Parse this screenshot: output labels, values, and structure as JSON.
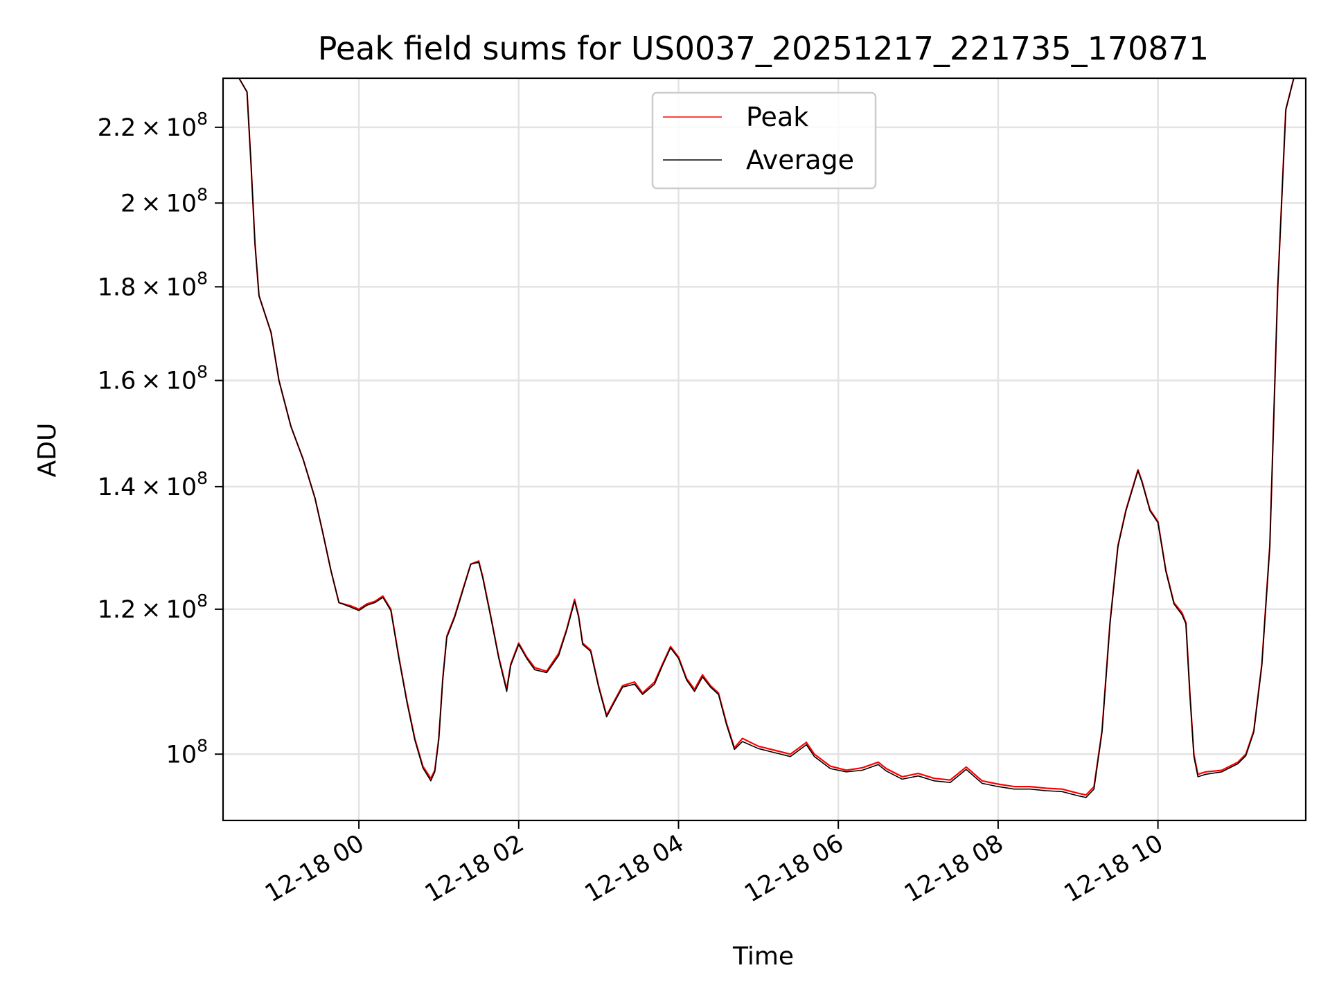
{
  "chart_data": {
    "type": "line",
    "title": "Peak field sums for US0037_20251217_221735_170871",
    "xlabel": "Time",
    "ylabel": "ADU",
    "x_unit": "hours after 12-18 00:00",
    "x_tick_labels": [
      {
        "x": 0,
        "label": "12-18 00"
      },
      {
        "x": 2,
        "label": "12-18 02"
      },
      {
        "x": 4,
        "label": "12-18 04"
      },
      {
        "x": 6,
        "label": "12-18 06"
      },
      {
        "x": 8,
        "label": "12-18 08"
      },
      {
        "x": 10,
        "label": "12-18 10"
      }
    ],
    "y_tick_labels": [
      {
        "y": 100000000,
        "mantissa": "",
        "exp": "8",
        "prefix": "10"
      },
      {
        "y": 120000000,
        "mantissa": "1.2",
        "exp": "8",
        "prefix": "10"
      },
      {
        "y": 140000000,
        "mantissa": "1.4",
        "exp": "8",
        "prefix": "10"
      },
      {
        "y": 160000000,
        "mantissa": "1.6",
        "exp": "8",
        "prefix": "10"
      },
      {
        "y": 180000000,
        "mantissa": "1.8",
        "exp": "8",
        "prefix": "10"
      },
      {
        "y": 200000000,
        "mantissa": "2",
        "exp": "8",
        "prefix": "10"
      },
      {
        "y": 220000000,
        "mantissa": "2.2",
        "exp": "8",
        "prefix": "10"
      }
    ],
    "xlim": [
      -1.7,
      11.85
    ],
    "ylim": [
      92000000,
      234000000
    ],
    "yscale": "log",
    "grid": true,
    "legend_position": "top-center",
    "series": [
      {
        "name": "Peak",
        "color": "#ff0000",
        "values": [
          [
            -1.7,
            234000000
          ],
          [
            -1.5,
            234000000
          ],
          [
            -1.4,
            230000000
          ],
          [
            -1.35,
            210000000
          ],
          [
            -1.3,
            190000000
          ],
          [
            -1.25,
            178000000
          ],
          [
            -1.1,
            170000000
          ],
          [
            -1.0,
            160000000
          ],
          [
            -0.85,
            151000000
          ],
          [
            -0.7,
            145000000
          ],
          [
            -0.55,
            138000000
          ],
          [
            -0.45,
            132000000
          ],
          [
            -0.35,
            126000000
          ],
          [
            -0.25,
            121000000
          ],
          [
            -0.1,
            120500000
          ],
          [
            0.0,
            120000000
          ],
          [
            0.1,
            120800000
          ],
          [
            0.2,
            121200000
          ],
          [
            0.3,
            122000000
          ],
          [
            0.35,
            121000000
          ],
          [
            0.4,
            120000000
          ],
          [
            0.5,
            113000000
          ],
          [
            0.6,
            107000000
          ],
          [
            0.7,
            102000000
          ],
          [
            0.8,
            98500000
          ],
          [
            0.9,
            97000000
          ],
          [
            0.95,
            98000000
          ],
          [
            1.0,
            102000000
          ],
          [
            1.05,
            110000000
          ],
          [
            1.1,
            116000000
          ],
          [
            1.2,
            119000000
          ],
          [
            1.3,
            123000000
          ],
          [
            1.4,
            127000000
          ],
          [
            1.5,
            127500000
          ],
          [
            1.55,
            125000000
          ],
          [
            1.65,
            119000000
          ],
          [
            1.75,
            113000000
          ],
          [
            1.85,
            108500000
          ],
          [
            1.9,
            112000000
          ],
          [
            2.0,
            115000000
          ],
          [
            2.1,
            113000000
          ],
          [
            2.2,
            111500000
          ],
          [
            2.35,
            111000000
          ],
          [
            2.5,
            113500000
          ],
          [
            2.6,
            117000000
          ],
          [
            2.7,
            121500000
          ],
          [
            2.75,
            119000000
          ],
          [
            2.8,
            115000000
          ],
          [
            2.9,
            114000000
          ],
          [
            3.0,
            109000000
          ],
          [
            3.1,
            105000000
          ],
          [
            3.2,
            107000000
          ],
          [
            3.3,
            109000000
          ],
          [
            3.45,
            109500000
          ],
          [
            3.55,
            108000000
          ],
          [
            3.7,
            109500000
          ],
          [
            3.8,
            112000000
          ],
          [
            3.9,
            114500000
          ],
          [
            4.0,
            113000000
          ],
          [
            4.1,
            110000000
          ],
          [
            4.2,
            108500000
          ],
          [
            4.3,
            110500000
          ],
          [
            4.4,
            109000000
          ],
          [
            4.5,
            108000000
          ],
          [
            4.6,
            104000000
          ],
          [
            4.7,
            100800000
          ],
          [
            4.8,
            102000000
          ],
          [
            5.0,
            101000000
          ],
          [
            5.2,
            100500000
          ],
          [
            5.4,
            100000000
          ],
          [
            5.6,
            101500000
          ],
          [
            5.7,
            100000000
          ],
          [
            5.9,
            98500000
          ],
          [
            6.1,
            98000000
          ],
          [
            6.3,
            98300000
          ],
          [
            6.5,
            99000000
          ],
          [
            6.6,
            98200000
          ],
          [
            6.8,
            97200000
          ],
          [
            7.0,
            97600000
          ],
          [
            7.2,
            97000000
          ],
          [
            7.4,
            96800000
          ],
          [
            7.6,
            98400000
          ],
          [
            7.8,
            96700000
          ],
          [
            8.0,
            96300000
          ],
          [
            8.2,
            96000000
          ],
          [
            8.4,
            96000000
          ],
          [
            8.6,
            95800000
          ],
          [
            8.8,
            95700000
          ],
          [
            9.0,
            95200000
          ],
          [
            9.1,
            95000000
          ],
          [
            9.2,
            96000000
          ],
          [
            9.3,
            103000000
          ],
          [
            9.4,
            118000000
          ],
          [
            9.5,
            130000000
          ],
          [
            9.6,
            136000000
          ],
          [
            9.75,
            143000000
          ],
          [
            9.8,
            141000000
          ],
          [
            9.9,
            136000000
          ],
          [
            10.0,
            134000000
          ],
          [
            10.1,
            126000000
          ],
          [
            10.2,
            121000000
          ],
          [
            10.3,
            119500000
          ],
          [
            10.35,
            118000000
          ],
          [
            10.4,
            108000000
          ],
          [
            10.45,
            100000000
          ],
          [
            10.5,
            97500000
          ],
          [
            10.6,
            97800000
          ],
          [
            10.8,
            98000000
          ],
          [
            11.0,
            99000000
          ],
          [
            11.1,
            100000000
          ],
          [
            11.2,
            103000000
          ],
          [
            11.3,
            112000000
          ],
          [
            11.4,
            130000000
          ],
          [
            11.5,
            180000000
          ],
          [
            11.6,
            225000000
          ],
          [
            11.7,
            234000000
          ],
          [
            11.85,
            234000000
          ]
        ]
      },
      {
        "name": "Average",
        "color": "#000000",
        "values": [
          [
            -1.7,
            234000000
          ],
          [
            -1.5,
            234000000
          ],
          [
            -1.4,
            230000000
          ],
          [
            -1.35,
            210000000
          ],
          [
            -1.3,
            190000000
          ],
          [
            -1.25,
            178000000
          ],
          [
            -1.1,
            170000000
          ],
          [
            -1.0,
            160000000
          ],
          [
            -0.85,
            151000000
          ],
          [
            -0.7,
            145000000
          ],
          [
            -0.55,
            138000000
          ],
          [
            -0.45,
            132000000
          ],
          [
            -0.35,
            126000000
          ],
          [
            -0.25,
            121000000
          ],
          [
            -0.1,
            120300000
          ],
          [
            0.0,
            119800000
          ],
          [
            0.1,
            120600000
          ],
          [
            0.2,
            121000000
          ],
          [
            0.3,
            121800000
          ],
          [
            0.35,
            120800000
          ],
          [
            0.4,
            119800000
          ],
          [
            0.5,
            112800000
          ],
          [
            0.6,
            106800000
          ],
          [
            0.7,
            101800000
          ],
          [
            0.8,
            98300000
          ],
          [
            0.9,
            96700000
          ],
          [
            0.95,
            97800000
          ],
          [
            1.0,
            101800000
          ],
          [
            1.05,
            109800000
          ],
          [
            1.1,
            115800000
          ],
          [
            1.2,
            118800000
          ],
          [
            1.3,
            122800000
          ],
          [
            1.4,
            127000000
          ],
          [
            1.5,
            127300000
          ],
          [
            1.55,
            124800000
          ],
          [
            1.65,
            118800000
          ],
          [
            1.75,
            112800000
          ],
          [
            1.85,
            108200000
          ],
          [
            1.9,
            111800000
          ],
          [
            2.0,
            114800000
          ],
          [
            2.1,
            112800000
          ],
          [
            2.2,
            111200000
          ],
          [
            2.35,
            110800000
          ],
          [
            2.5,
            113200000
          ],
          [
            2.6,
            116800000
          ],
          [
            2.7,
            121200000
          ],
          [
            2.75,
            118800000
          ],
          [
            2.8,
            114800000
          ],
          [
            2.9,
            113800000
          ],
          [
            3.0,
            108800000
          ],
          [
            3.1,
            104800000
          ],
          [
            3.2,
            106800000
          ],
          [
            3.3,
            108800000
          ],
          [
            3.45,
            109200000
          ],
          [
            3.55,
            107800000
          ],
          [
            3.7,
            109200000
          ],
          [
            3.8,
            111800000
          ],
          [
            3.9,
            114300000
          ],
          [
            4.0,
            112800000
          ],
          [
            4.1,
            109800000
          ],
          [
            4.2,
            108200000
          ],
          [
            4.3,
            110200000
          ],
          [
            4.4,
            108800000
          ],
          [
            4.5,
            107800000
          ],
          [
            4.6,
            103800000
          ],
          [
            4.7,
            100600000
          ],
          [
            4.8,
            101600000
          ],
          [
            5.0,
            100700000
          ],
          [
            5.2,
            100200000
          ],
          [
            5.4,
            99700000
          ],
          [
            5.6,
            101200000
          ],
          [
            5.7,
            99700000
          ],
          [
            5.9,
            98200000
          ],
          [
            6.1,
            97800000
          ],
          [
            6.3,
            98000000
          ],
          [
            6.5,
            98700000
          ],
          [
            6.6,
            97900000
          ],
          [
            6.8,
            96900000
          ],
          [
            7.0,
            97300000
          ],
          [
            7.2,
            96700000
          ],
          [
            7.4,
            96500000
          ],
          [
            7.6,
            98100000
          ],
          [
            7.8,
            96400000
          ],
          [
            8.0,
            96000000
          ],
          [
            8.2,
            95700000
          ],
          [
            8.4,
            95700000
          ],
          [
            8.6,
            95500000
          ],
          [
            8.8,
            95400000
          ],
          [
            9.0,
            94900000
          ],
          [
            9.1,
            94700000
          ],
          [
            9.2,
            95700000
          ],
          [
            9.3,
            102800000
          ],
          [
            9.4,
            117800000
          ],
          [
            9.5,
            129800000
          ],
          [
            9.6,
            135800000
          ],
          [
            9.75,
            142800000
          ],
          [
            9.8,
            140800000
          ],
          [
            9.9,
            135800000
          ],
          [
            10.0,
            133800000
          ],
          [
            10.1,
            125800000
          ],
          [
            10.2,
            120800000
          ],
          [
            10.3,
            119200000
          ],
          [
            10.35,
            117800000
          ],
          [
            10.4,
            107800000
          ],
          [
            10.45,
            99700000
          ],
          [
            10.5,
            97200000
          ],
          [
            10.6,
            97500000
          ],
          [
            10.8,
            97800000
          ],
          [
            11.0,
            98800000
          ],
          [
            11.1,
            99800000
          ],
          [
            11.2,
            102800000
          ],
          [
            11.3,
            111800000
          ],
          [
            11.4,
            129800000
          ],
          [
            11.5,
            179800000
          ],
          [
            11.6,
            224800000
          ],
          [
            11.7,
            234000000
          ],
          [
            11.85,
            234000000
          ]
        ]
      }
    ]
  }
}
